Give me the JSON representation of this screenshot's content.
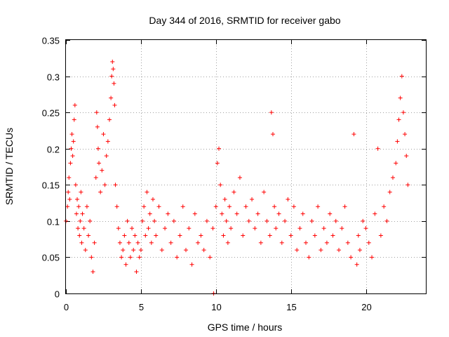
{
  "chart_data": {
    "type": "scatter",
    "title": "Day 344 of 2016, SRMTID for receiver gabo",
    "xlabel": "GPS time / hours",
    "ylabel": "SRMTID / TECUs",
    "xlim": [
      0,
      24
    ],
    "ylim": [
      0,
      0.35
    ],
    "x_ticks": [
      0,
      5,
      10,
      15,
      20
    ],
    "x_tick_labels": [
      "0",
      "5",
      "10",
      "15",
      "20"
    ],
    "y_ticks": [
      0,
      0.05,
      0.1,
      0.15,
      0.2,
      0.25,
      0.3,
      0.35
    ],
    "y_tick_labels": [
      "0",
      "0.05",
      "0.1",
      "0.15",
      "0.2",
      "0.25",
      "0.3",
      "0.35"
    ],
    "grid": true,
    "marker": "+",
    "color": "#ff0000",
    "series": [
      {
        "name": "SRMTID",
        "x": [
          0.0,
          0.1,
          0.15,
          0.2,
          0.25,
          0.3,
          0.35,
          0.4,
          0.45,
          0.5,
          0.55,
          0.6,
          0.65,
          0.7,
          0.75,
          0.8,
          0.85,
          0.9,
          0.95,
          1.0,
          1.05,
          1.1,
          1.2,
          1.3,
          1.4,
          1.5,
          1.6,
          1.7,
          1.8,
          1.9,
          2.0,
          2.05,
          2.1,
          2.15,
          2.2,
          2.3,
          2.4,
          2.5,
          2.6,
          2.7,
          2.8,
          2.9,
          3.0,
          3.05,
          3.1,
          3.15,
          3.2,
          3.25,
          3.3,
          3.4,
          3.5,
          3.6,
          3.7,
          3.8,
          3.9,
          4.0,
          4.1,
          4.2,
          4.3,
          4.4,
          4.5,
          4.6,
          4.7,
          4.8,
          4.9,
          5.0,
          5.1,
          5.2,
          5.3,
          5.4,
          5.5,
          5.6,
          5.7,
          5.8,
          5.9,
          6.0,
          6.2,
          6.4,
          6.6,
          6.8,
          7.0,
          7.2,
          7.4,
          7.6,
          7.8,
          8.0,
          8.2,
          8.4,
          8.6,
          8.8,
          9.0,
          9.2,
          9.4,
          9.6,
          9.8,
          9.85,
          10.0,
          10.1,
          10.2,
          10.3,
          10.4,
          10.5,
          10.6,
          10.7,
          10.8,
          10.9,
          11.0,
          11.2,
          11.4,
          11.6,
          11.8,
          12.0,
          12.2,
          12.4,
          12.6,
          12.8,
          13.0,
          13.2,
          13.4,
          13.6,
          13.7,
          13.8,
          13.9,
          14.0,
          14.2,
          14.4,
          14.6,
          14.8,
          15.0,
          15.2,
          15.4,
          15.6,
          15.8,
          16.0,
          16.2,
          16.4,
          16.6,
          16.8,
          17.0,
          17.2,
          17.4,
          17.6,
          17.8,
          18.0,
          18.2,
          18.4,
          18.6,
          18.8,
          19.0,
          19.2,
          19.4,
          19.5,
          19.6,
          19.8,
          20.0,
          20.2,
          20.4,
          20.6,
          20.8,
          21.0,
          21.2,
          21.4,
          21.6,
          21.8,
          22.0,
          22.1,
          22.2,
          22.3,
          22.4,
          22.5,
          22.6,
          22.7,
          22.8
        ],
        "y": [
          0.1,
          0.12,
          0.14,
          0.16,
          0.13,
          0.18,
          0.2,
          0.22,
          0.19,
          0.21,
          0.24,
          0.26,
          0.15,
          0.11,
          0.13,
          0.09,
          0.12,
          0.08,
          0.1,
          0.14,
          0.07,
          0.11,
          0.09,
          0.06,
          0.12,
          0.08,
          0.1,
          0.05,
          0.03,
          0.07,
          0.16,
          0.25,
          0.23,
          0.2,
          0.18,
          0.14,
          0.17,
          0.22,
          0.15,
          0.19,
          0.21,
          0.24,
          0.27,
          0.3,
          0.32,
          0.31,
          0.29,
          0.26,
          0.15,
          0.12,
          0.09,
          0.07,
          0.05,
          0.06,
          0.08,
          0.04,
          0.1,
          0.07,
          0.05,
          0.09,
          0.06,
          0.08,
          0.03,
          0.07,
          0.05,
          0.06,
          0.1,
          0.12,
          0.08,
          0.14,
          0.09,
          0.11,
          0.07,
          0.13,
          0.1,
          0.08,
          0.12,
          0.06,
          0.09,
          0.11,
          0.07,
          0.1,
          0.05,
          0.08,
          0.12,
          0.06,
          0.09,
          0.04,
          0.11,
          0.07,
          0.08,
          0.06,
          0.1,
          0.05,
          0.09,
          0.0,
          0.12,
          0.18,
          0.2,
          0.15,
          0.11,
          0.08,
          0.13,
          0.1,
          0.07,
          0.12,
          0.09,
          0.14,
          0.11,
          0.16,
          0.08,
          0.12,
          0.1,
          0.13,
          0.09,
          0.11,
          0.07,
          0.14,
          0.1,
          0.08,
          0.25,
          0.22,
          0.12,
          0.09,
          0.11,
          0.07,
          0.1,
          0.13,
          0.08,
          0.12,
          0.06,
          0.09,
          0.11,
          0.07,
          0.05,
          0.1,
          0.08,
          0.12,
          0.06,
          0.09,
          0.07,
          0.11,
          0.08,
          0.1,
          0.06,
          0.09,
          0.12,
          0.07,
          0.05,
          0.22,
          0.04,
          0.08,
          0.06,
          0.1,
          0.09,
          0.07,
          0.05,
          0.11,
          0.2,
          0.08,
          0.12,
          0.1,
          0.14,
          0.16,
          0.18,
          0.21,
          0.24,
          0.27,
          0.3,
          0.25,
          0.22,
          0.19,
          0.15
        ]
      }
    ]
  }
}
